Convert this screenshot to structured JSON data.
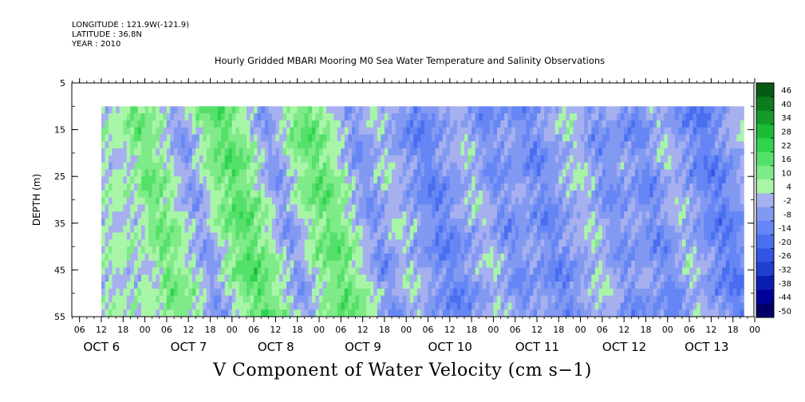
{
  "header": {
    "longitude": "LONGITUDE : 121.9W(-121.9)",
    "latitude": "LATITUDE : 36.8N",
    "year": "YEAR : 2010"
  },
  "chart_data": {
    "type": "heatmap",
    "title": "Hourly Gridded MBARI Mooring M0 Sea Water Temperature and Salinity Observations",
    "xlabel": "",
    "ylabel": "DEPTH (m)",
    "bottom_title": "V Component of Water Velocity (cm s−1)",
    "x_hour_ticks": [
      "06",
      "12",
      "18",
      "00",
      "06",
      "12",
      "18",
      "00",
      "06",
      "12",
      "18",
      "00",
      "06",
      "12",
      "18",
      "00",
      "06",
      "12",
      "18",
      "00",
      "06",
      "12",
      "18",
      "00",
      "06",
      "12",
      "18",
      "00",
      "06",
      "12",
      "18",
      "00"
    ],
    "x_day_labels": [
      "OCT  6",
      "OCT  7",
      "OCT  8",
      "OCT  9",
      "OCT 10",
      "OCT 11",
      "OCT 12",
      "OCT 13"
    ],
    "y_ticks": [
      "5",
      "15",
      "25",
      "35",
      "45",
      "55"
    ],
    "y_range": [
      5,
      55
    ],
    "data_depth_range": [
      10,
      55
    ],
    "colorbar": {
      "levels": [
        -50,
        -44,
        -38,
        -32,
        -26,
        -20,
        -14,
        -8,
        -2,
        4,
        10,
        16,
        22,
        28,
        34,
        40,
        46
      ],
      "labels": [
        "46",
        "40",
        "34",
        "28",
        "22",
        "16",
        "10",
        "4",
        "-2",
        "-8",
        "-14",
        "-20",
        "-26",
        "-32",
        "-38",
        "-44",
        "-50"
      ]
    },
    "bands": [
      {
        "hour": 4,
        "value": 5
      },
      {
        "hour": 8,
        "value": 16
      },
      {
        "hour": 14,
        "value": 8
      },
      {
        "hour": 20,
        "value": -6
      },
      {
        "hour": 26,
        "value": 10
      },
      {
        "hour": 32,
        "value": 20
      },
      {
        "hour": 38,
        "value": 9
      },
      {
        "hour": 44,
        "value": -6
      },
      {
        "hour": 50,
        "value": 10
      },
      {
        "hour": 56,
        "value": 18
      },
      {
        "hour": 62,
        "value": 6
      },
      {
        "hour": 68,
        "value": -8
      },
      {
        "hour": 74,
        "value": 4
      },
      {
        "hour": 80,
        "value": -4
      },
      {
        "hour": 86,
        "value": -12
      },
      {
        "hour": 92,
        "value": -4
      },
      {
        "hour": 98,
        "value": 3
      },
      {
        "hour": 104,
        "value": -9
      },
      {
        "hour": 110,
        "value": -3
      },
      {
        "hour": 116,
        "value": -11
      },
      {
        "hour": 122,
        "value": -2
      },
      {
        "hour": 128,
        "value": 4
      },
      {
        "hour": 134,
        "value": -8
      },
      {
        "hour": 140,
        "value": -3
      },
      {
        "hour": 146,
        "value": -10
      },
      {
        "hour": 152,
        "value": 3
      },
      {
        "hour": 158,
        "value": -6
      },
      {
        "hour": 164,
        "value": -14
      },
      {
        "hour": 170,
        "value": -4
      },
      {
        "hour": 176,
        "value": 5
      }
    ]
  }
}
